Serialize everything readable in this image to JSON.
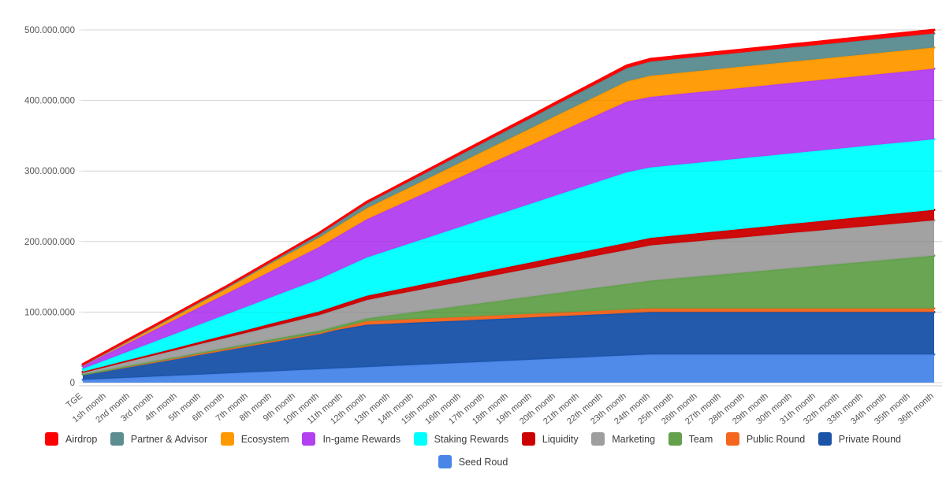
{
  "page": {
    "background": "#ffffff"
  },
  "chart_data": {
    "type": "area",
    "stacked": true,
    "title": "",
    "xlabel": "",
    "ylabel": "",
    "unit": "tokens (millions)",
    "total_supply_millions": 500,
    "grid": true,
    "legend_position": "bottom",
    "y_axis": {
      "min": 0,
      "max_millions": 500,
      "tick_values_millions": [
        0,
        100,
        200,
        300,
        400,
        500
      ],
      "tick_labels": [
        "0",
        "100.000.000",
        "200.000.000",
        "300.000.000",
        "400.000.000",
        "500.000.000"
      ]
    },
    "categories": [
      "TGE",
      "1sh month",
      "2nd month",
      "3rd month",
      "4th month",
      "5th month",
      "6th month",
      "7th month",
      "8th month",
      "9th month",
      "10th month",
      "11th month",
      "12th month",
      "13th month",
      "14th month",
      "15th month",
      "16th month",
      "17th month",
      "18th month",
      "19th month",
      "20th month",
      "21th month",
      "22th month",
      "23th month",
      "24th month",
      "25th month",
      "26th month",
      "27th month",
      "28th month",
      "29th month",
      "30th month",
      "31th month",
      "32th month",
      "33th month",
      "34th month",
      "35th month",
      "36th month"
    ],
    "series": [
      {
        "name": "Airdrop",
        "color": "#FF0000",
        "allocation_millions": 5,
        "values": [
          1,
          1.1,
          1.2,
          1.3,
          1.4,
          1.6,
          1.7,
          1.8,
          1.9,
          2,
          2.1,
          2.2,
          2.3,
          2.4,
          2.6,
          2.7,
          2.8,
          2.9,
          3,
          3.1,
          3.2,
          3.3,
          3.4,
          3.6,
          3.7,
          3.8,
          3.9,
          4,
          4.1,
          4.2,
          4.3,
          4.4,
          4.6,
          4.7,
          4.8,
          4.9,
          5
        ]
      },
      {
        "name": "Partner & Advisor",
        "color": "#5C8D91",
        "allocation_millions": 20,
        "values": [
          0,
          0,
          0,
          0,
          0,
          0,
          0,
          1.1,
          2.2,
          3.3,
          4.4,
          5.6,
          6.7,
          7.8,
          8.9,
          10,
          11.1,
          12.2,
          13.3,
          14.4,
          15.6,
          16.7,
          17.8,
          18.9,
          20,
          20,
          20,
          20,
          20,
          20,
          20,
          20,
          20,
          20,
          20,
          20,
          20
        ]
      },
      {
        "name": "Ecosystem",
        "color": "#FF9900",
        "allocation_millions": 30,
        "values": [
          1.5,
          2.7,
          3.9,
          5.1,
          6.3,
          7.4,
          8.6,
          9.8,
          11,
          12.2,
          13.4,
          14.6,
          15.8,
          16.9,
          18.1,
          19.3,
          20.5,
          21.7,
          22.9,
          24.1,
          25.3,
          26.4,
          27.6,
          28.8,
          30,
          30,
          30,
          30,
          30,
          30,
          30,
          30,
          30,
          30,
          30,
          30,
          30
        ]
      },
      {
        "name": "In-game Rewards",
        "color": "#B341F0",
        "allocation_millions": 100,
        "values": [
          4,
          8.2,
          12.3,
          16.5,
          20.7,
          24.9,
          29,
          33.2,
          37.4,
          41.6,
          45.7,
          49.9,
          54.1,
          58.3,
          62.4,
          66.6,
          70.8,
          75,
          79.1,
          83.3,
          87.5,
          91.7,
          95.8,
          100,
          100,
          100,
          100,
          100,
          100,
          100,
          100,
          100,
          100,
          100,
          100,
          100,
          100
        ]
      },
      {
        "name": "Staking Rewards",
        "color": "#00FFFF",
        "allocation_millions": 100,
        "values": [
          4,
          8.2,
          12.3,
          16.5,
          20.7,
          24.9,
          29,
          33.2,
          37.4,
          41.6,
          45.7,
          49.9,
          54.1,
          58.3,
          62.4,
          66.6,
          70.8,
          75,
          79.1,
          83.3,
          87.5,
          91.7,
          95.8,
          100,
          100,
          100,
          100,
          100,
          100,
          100,
          100,
          100,
          100,
          100,
          100,
          100,
          100
        ]
      },
      {
        "name": "Liquidity",
        "color": "#CC0000",
        "allocation_millions": 15,
        "values": [
          1.5,
          1.9,
          2.3,
          2.6,
          3,
          3.4,
          3.8,
          4.1,
          4.5,
          4.9,
          5.3,
          5.6,
          6,
          6.4,
          6.8,
          7.1,
          7.5,
          7.9,
          8.3,
          8.6,
          9,
          9.4,
          9.8,
          10.1,
          10.5,
          10.9,
          11.3,
          11.6,
          12,
          12.4,
          12.8,
          13.1,
          13.5,
          13.9,
          14.3,
          14.6,
          15
        ]
      },
      {
        "name": "Marketing",
        "color": "#9E9E9E",
        "allocation_millions": 50,
        "values": [
          2,
          4,
          6,
          8,
          10,
          12,
          14,
          16,
          18,
          20,
          22,
          24,
          26,
          28,
          30,
          32,
          34,
          36,
          38,
          40,
          42,
          44,
          46,
          48,
          50,
          50,
          50,
          50,
          50,
          50,
          50,
          50,
          50,
          50,
          50,
          50,
          50
        ]
      },
      {
        "name": "Team",
        "color": "#63A14C",
        "allocation_millions": 75,
        "values": [
          0,
          0.3,
          0.7,
          1,
          1.3,
          1.7,
          2,
          2.3,
          2.7,
          3,
          3.3,
          3.7,
          4,
          7,
          9.9,
          12.9,
          15.8,
          18.8,
          21.8,
          24.7,
          27.7,
          30.6,
          33.6,
          36.5,
          39.5,
          42.5,
          45.4,
          48.4,
          51.3,
          54.3,
          57.3,
          60.2,
          63.2,
          66.1,
          69.1,
          72,
          75
        ]
      },
      {
        "name": "Public Round",
        "color": "#F4661D",
        "allocation_millions": 5,
        "values": [
          0,
          0,
          0,
          0,
          0,
          0,
          0,
          0,
          0,
          0,
          0,
          2.5,
          5,
          5,
          5,
          5,
          5,
          5,
          5,
          5,
          5,
          5,
          5,
          5,
          5,
          5,
          5,
          5,
          5,
          5,
          5,
          5,
          5,
          5,
          5,
          5,
          5
        ]
      },
      {
        "name": "Private Round",
        "color": "#1A53A8",
        "allocation_millions": 60,
        "values": [
          8,
          12.3,
          16.7,
          21,
          25.3,
          29.7,
          34,
          38.3,
          42.7,
          47,
          51.3,
          55.7,
          60,
          60,
          60,
          60,
          60,
          60,
          60,
          60,
          60,
          60,
          60,
          60,
          60,
          60,
          60,
          60,
          60,
          60,
          60,
          60,
          60,
          60,
          60,
          60,
          60
        ]
      },
      {
        "name": "Seed Roud",
        "color": "#4A86E8",
        "allocation_millions": 40,
        "values": [
          4,
          5.5,
          7,
          8.5,
          10,
          11.5,
          13,
          14.5,
          16,
          17.5,
          19,
          20.5,
          22,
          23.5,
          25,
          26.5,
          28,
          29.5,
          31,
          32.5,
          34,
          35.5,
          37,
          38.5,
          40,
          40,
          40,
          40,
          40,
          40,
          40,
          40,
          40,
          40,
          40,
          40,
          40
        ]
      }
    ],
    "legend_rows": [
      [
        0,
        1,
        2,
        3,
        4,
        5,
        6,
        7,
        8,
        9
      ],
      [
        10
      ]
    ]
  },
  "style": {
    "gridline_color": "#E2E2E2",
    "axis_label_color": "#555555",
    "baseline_color": "#CCCCCC"
  }
}
